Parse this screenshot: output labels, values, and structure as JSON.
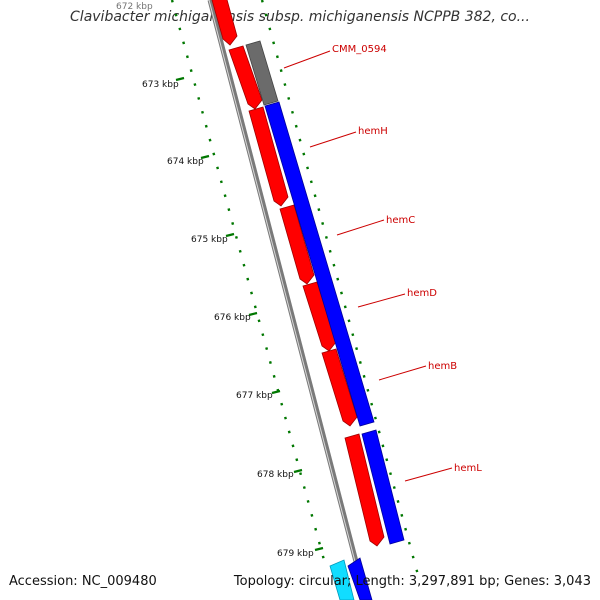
{
  "title": "Clavibacter michiganensis subsp. michiganensis NCPPB 382, co...",
  "footer": {
    "accession": "Accession: NC_009480",
    "info": "Topology: circular; Length: 3,297,891 bp; Genes: 3,043"
  },
  "ticks": [
    "672 kbp",
    "673 kbp",
    "674 kbp",
    "675 kbp",
    "676 kbp",
    "677 kbp",
    "678 kbp",
    "679 kbp"
  ],
  "genes": [
    {
      "name": "CMM_0594"
    },
    {
      "name": "hemH"
    },
    {
      "name": "hemC"
    },
    {
      "name": "hemD"
    },
    {
      "name": "hemB"
    },
    {
      "name": "hemL"
    }
  ],
  "colors": {
    "reverse_strand": "#ff0000",
    "forward_strand": "#0000ff",
    "other_gene": "#6b6b6b",
    "backbone": "#7a7a7a",
    "tick": "#007700",
    "label": "#cc0000"
  }
}
